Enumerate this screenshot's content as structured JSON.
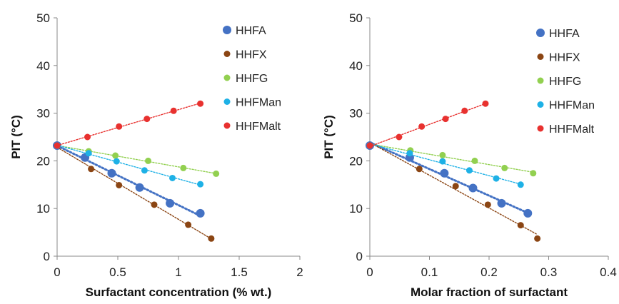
{
  "chart_data": [
    {
      "type": "scatter",
      "xlabel": "Surfactant concentration (% wt.)",
      "ylabel": "PIT (°C)",
      "xlim": [
        0,
        2
      ],
      "ylim": [
        0,
        50
      ],
      "xticks": [
        "0",
        "0.5",
        "1",
        "1.5",
        "2"
      ],
      "yticks": [
        "0",
        "10",
        "20",
        "30",
        "40",
        "50"
      ],
      "legend_position": "top-right",
      "grid": false,
      "series": [
        {
          "name": "HHFA",
          "color": "#4472C4",
          "trend": "dotted",
          "x": [
            0,
            0.23,
            0.45,
            0.68,
            0.93,
            1.18
          ],
          "y": [
            23.2,
            20.7,
            17.4,
            14.4,
            11.1,
            9.0
          ]
        },
        {
          "name": "HHFX",
          "color": "#8B4513",
          "trend": "dotted",
          "x": [
            0,
            0.28,
            0.51,
            0.8,
            1.08,
            1.27
          ],
          "y": [
            23.2,
            18.3,
            14.9,
            10.8,
            6.6,
            3.7
          ]
        },
        {
          "name": "HHFG",
          "color": "#92D050",
          "trend": "dotted",
          "x": [
            0,
            0.26,
            0.48,
            0.75,
            1.04,
            1.31
          ],
          "y": [
            23.2,
            22.0,
            21.1,
            20.0,
            18.5,
            17.3
          ]
        },
        {
          "name": "HHFMan",
          "color": "#1EB1E6",
          "trend": "dotted",
          "x": [
            0,
            0.26,
            0.49,
            0.72,
            0.95,
            1.18
          ],
          "y": [
            23.2,
            21.6,
            19.9,
            18.0,
            16.4,
            15.1
          ]
        },
        {
          "name": "HHFMalt",
          "color": "#E8312F",
          "trend": "dotted",
          "x": [
            0,
            0.25,
            0.51,
            0.74,
            0.96,
            1.18
          ],
          "y": [
            23.2,
            25.0,
            27.2,
            28.8,
            30.5,
            32.0
          ]
        }
      ]
    },
    {
      "type": "scatter",
      "xlabel": "Molar fraction of surfactant",
      "ylabel": "PIT (°C)",
      "xlim": [
        0,
        0.4
      ],
      "ylim": [
        0,
        50
      ],
      "xticks": [
        "0",
        "0.1",
        "0.2",
        "0.3",
        "0.4"
      ],
      "yticks": [
        "0",
        "10",
        "20",
        "30",
        "40",
        "50"
      ],
      "legend_position": "top-right",
      "grid": false,
      "series": [
        {
          "name": "HHFA",
          "color": "#4472C4",
          "trend": "dotted",
          "x": [
            0,
            0.067,
            0.125,
            0.173,
            0.221,
            0.265
          ],
          "y": [
            23.2,
            20.7,
            17.4,
            14.3,
            11.1,
            9.0
          ]
        },
        {
          "name": "HHFX",
          "color": "#8B4513",
          "trend": "dotted",
          "x": [
            0,
            0.083,
            0.144,
            0.198,
            0.253,
            0.281
          ],
          "y": [
            23.2,
            18.3,
            14.7,
            10.8,
            6.5,
            3.7
          ]
        },
        {
          "name": "HHFG",
          "color": "#92D050",
          "trend": "dotted",
          "x": [
            0,
            0.068,
            0.122,
            0.176,
            0.226,
            0.274
          ],
          "y": [
            23.2,
            22.2,
            21.2,
            20.0,
            18.5,
            17.4
          ]
        },
        {
          "name": "HHFMan",
          "color": "#1EB1E6",
          "trend": "dotted",
          "x": [
            0,
            0.067,
            0.122,
            0.167,
            0.212,
            0.253
          ],
          "y": [
            23.2,
            21.6,
            19.9,
            18.0,
            16.3,
            15.0
          ]
        },
        {
          "name": "HHFMalt",
          "color": "#E8312F",
          "trend": "dotted",
          "x": [
            0,
            0.049,
            0.087,
            0.127,
            0.159,
            0.194
          ],
          "y": [
            23.2,
            25.0,
            27.2,
            28.8,
            30.5,
            32.0
          ]
        }
      ]
    }
  ]
}
